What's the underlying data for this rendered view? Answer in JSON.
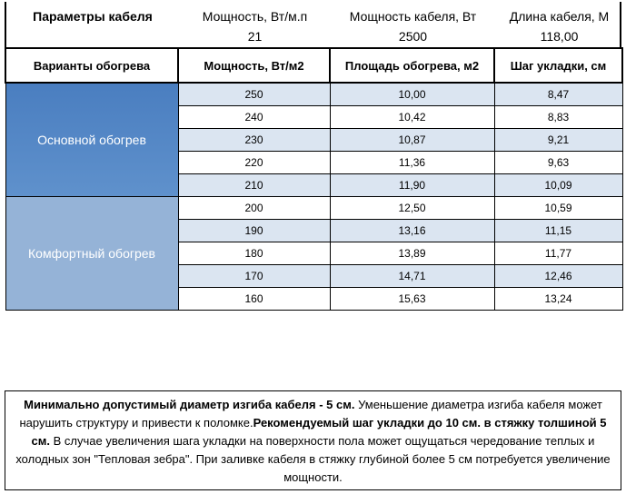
{
  "params": {
    "title": "Параметры кабеля",
    "columns": [
      "Мощность, Вт/м.п",
      "Мощность кабеля, Вт",
      "Длина кабеля, М"
    ],
    "values": [
      21,
      2500,
      "118,00"
    ]
  },
  "table": {
    "header": [
      "Варианты обогрева",
      "Мощность, Вт/м2",
      "Площадь обогрева, м2",
      "Шаг укладки, см"
    ],
    "groups": [
      {
        "label": "Основной обогрев",
        "rows": [
          [
            250,
            "10,00",
            "8,47"
          ],
          [
            240,
            "10,42",
            "8,83"
          ],
          [
            230,
            "10,87",
            "9,21"
          ],
          [
            220,
            "11,36",
            "9,63"
          ],
          [
            210,
            "11,90",
            "10,09"
          ]
        ]
      },
      {
        "label": "Комфортный обогрев",
        "rows": [
          [
            200,
            "12,50",
            "10,59"
          ],
          [
            190,
            "13,16",
            "11,15"
          ],
          [
            180,
            "13,89",
            "11,77"
          ],
          [
            170,
            "14,71",
            "12,46"
          ],
          [
            160,
            "15,63",
            "13,24"
          ]
        ]
      }
    ]
  },
  "note": {
    "segments": [
      {
        "text": "Минимально допустимый диаметр изгиба кабеля - 5 см.",
        "bold": true
      },
      {
        "text": "  Уменьшение диаметра изгиба кабеля может нарушить структуру и привести к поломке.",
        "bold": false
      },
      {
        "text": "Рекомендуемый шаг укладки до 10 см. в стяжку толшиной 5 см.",
        "bold": true
      },
      {
        "text": " В  случае увеличения шага укладки на поверхности пола может ощущаться чередование теплых и холодных зон \"Тепловая зебра\". При заливке кабеля в стяжку глубиной более 5 см потребуется увеличение мощности.",
        "bold": false
      }
    ]
  }
}
